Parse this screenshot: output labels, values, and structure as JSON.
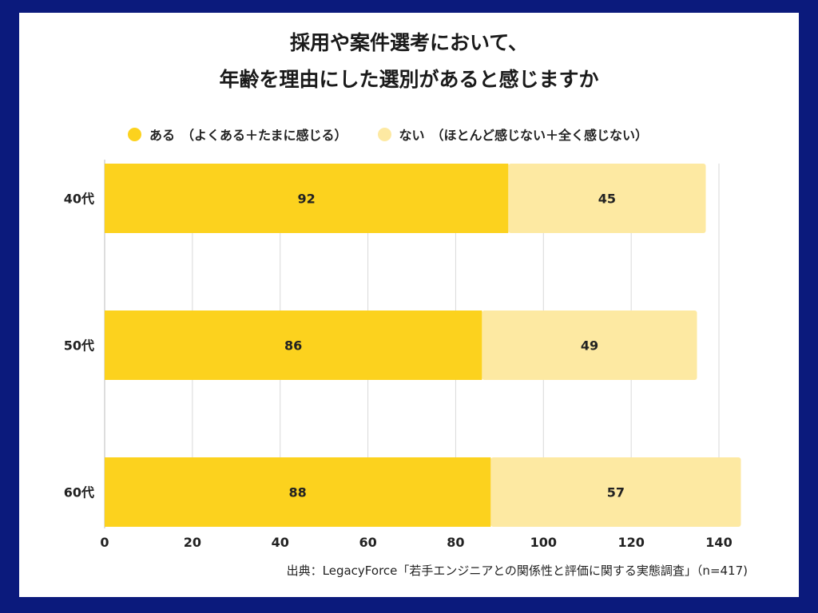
{
  "chart_data": {
    "type": "bar",
    "orientation": "horizontal",
    "stacked": true,
    "title_lines": [
      "採用や案件選考において、",
      "年齢を理由にした選別があると感じますか"
    ],
    "categories": [
      "40代",
      "50代",
      "60代"
    ],
    "series": [
      {
        "name": "ある　（よくある＋たまに感じる）",
        "values": [
          92,
          86,
          88
        ],
        "color": "#fcd21e"
      },
      {
        "name": "ない　（ほとんど感じない＋全く感じない）",
        "values": [
          45,
          49,
          57
        ],
        "color": "#fde9a2"
      }
    ],
    "xlim": [
      0,
      140
    ],
    "xticks": [
      0,
      20,
      40,
      60,
      80,
      100,
      120,
      140
    ],
    "grid": true,
    "legend_position": "top",
    "source": "出典：LegacyForce「若手エンジニアとの関係性と評価に関する実態調査」（n=417)"
  },
  "colors": {
    "frame": "#0b1a7c",
    "grid": "#d9d9d9"
  }
}
